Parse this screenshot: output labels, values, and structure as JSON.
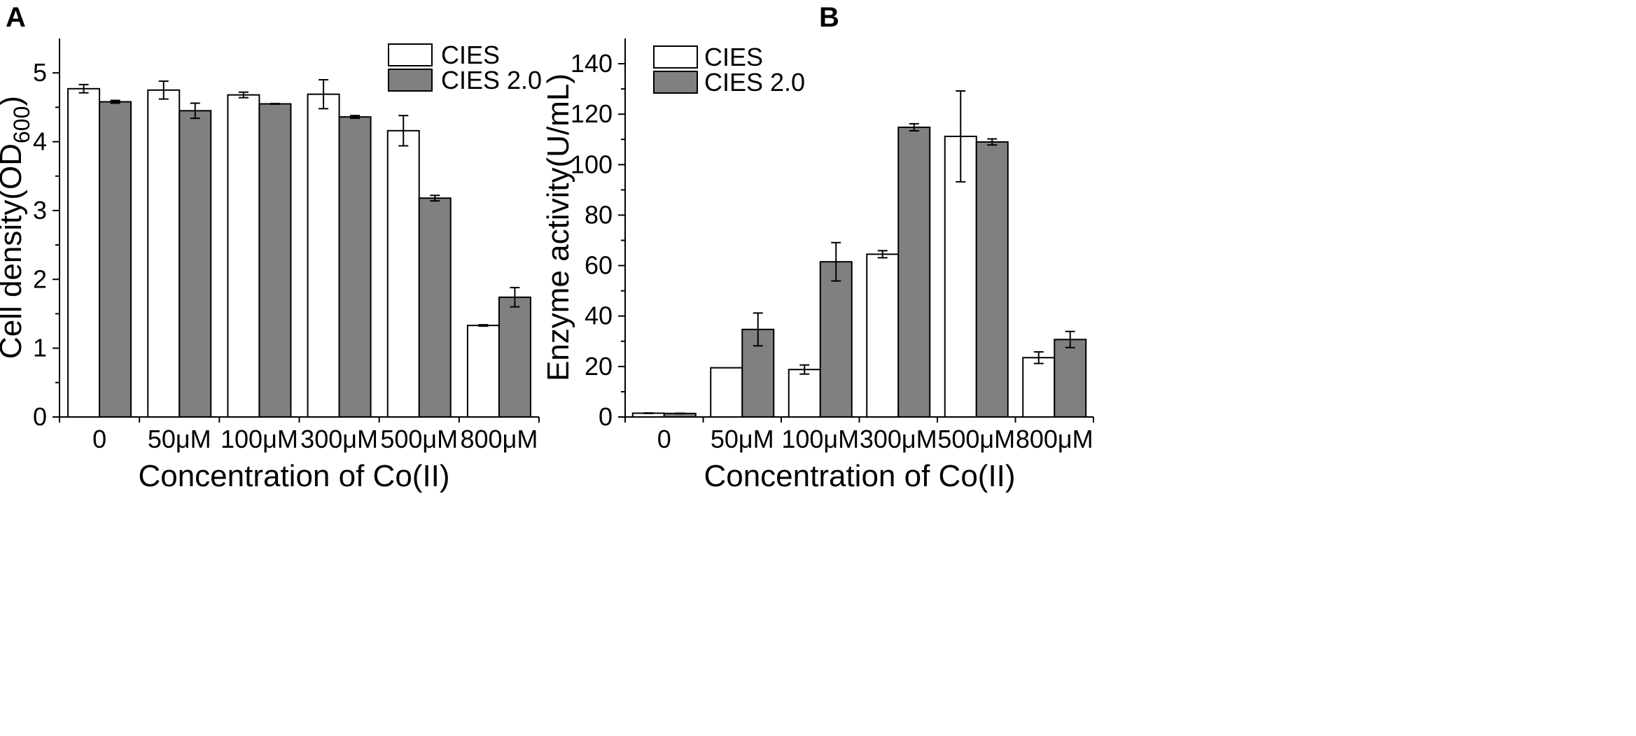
{
  "chart_data": [
    {
      "type": "bar",
      "panel": "A",
      "categories": [
        "0",
        "50μM",
        "100μM",
        "300μM",
        "500μM",
        "800μM"
      ],
      "series": [
        {
          "name": "CIES",
          "color": "#ffffff",
          "values": [
            4.77,
            4.75,
            4.68,
            4.69,
            4.16,
            1.33
          ],
          "errors": [
            0.06,
            0.13,
            0.04,
            0.21,
            0.22,
            0.01
          ]
        },
        {
          "name": "CIES 2.0",
          "color": "#808080",
          "values": [
            4.58,
            4.45,
            4.55,
            4.36,
            3.18,
            1.74
          ],
          "errors": [
            0.02,
            0.11,
            0.005,
            0.02,
            0.04,
            0.14
          ]
        }
      ],
      "xlabel": "Concentration of Co(II)",
      "ylabel_prefix": "Cell density(OD",
      "ylabel_sub": "600",
      "ylabel_suffix": ")",
      "ylim": [
        0,
        5.5
      ],
      "yticks": [
        "0",
        "1",
        "2",
        "3",
        "4",
        "5"
      ],
      "ytick_values": [
        0,
        1,
        2,
        3,
        4,
        5
      ],
      "minor_step": 0.5,
      "legend": "top-right",
      "grid": false
    },
    {
      "type": "bar",
      "panel": "B",
      "categories": [
        "0",
        "50μM",
        "100μM",
        "300μM",
        "500μM",
        "800μM"
      ],
      "series": [
        {
          "name": "CIES",
          "color": "#ffffff",
          "values": [
            1.5,
            19.5,
            18.8,
            64.5,
            111.2,
            23.5
          ],
          "errors": [
            0.1,
            0,
            1.8,
            1.4,
            18,
            2.3
          ]
        },
        {
          "name": "CIES 2.0",
          "color": "#808080",
          "values": [
            1.4,
            34.7,
            61.5,
            114.8,
            109.0,
            30.7
          ],
          "errors": [
            0.1,
            6.5,
            7.6,
            1.4,
            1.2,
            3.2
          ]
        }
      ],
      "xlabel": "Concentration of Co(II)",
      "ylabel": "Enzyme activity(U/mL)",
      "ylim": [
        0,
        150
      ],
      "yticks": [
        "0",
        "20",
        "40",
        "60",
        "80",
        "100",
        "120",
        "140"
      ],
      "ytick_values": [
        0,
        20,
        40,
        60,
        80,
        100,
        120,
        140
      ],
      "minor_step": 10,
      "legend": "top-left",
      "grid": false
    }
  ]
}
